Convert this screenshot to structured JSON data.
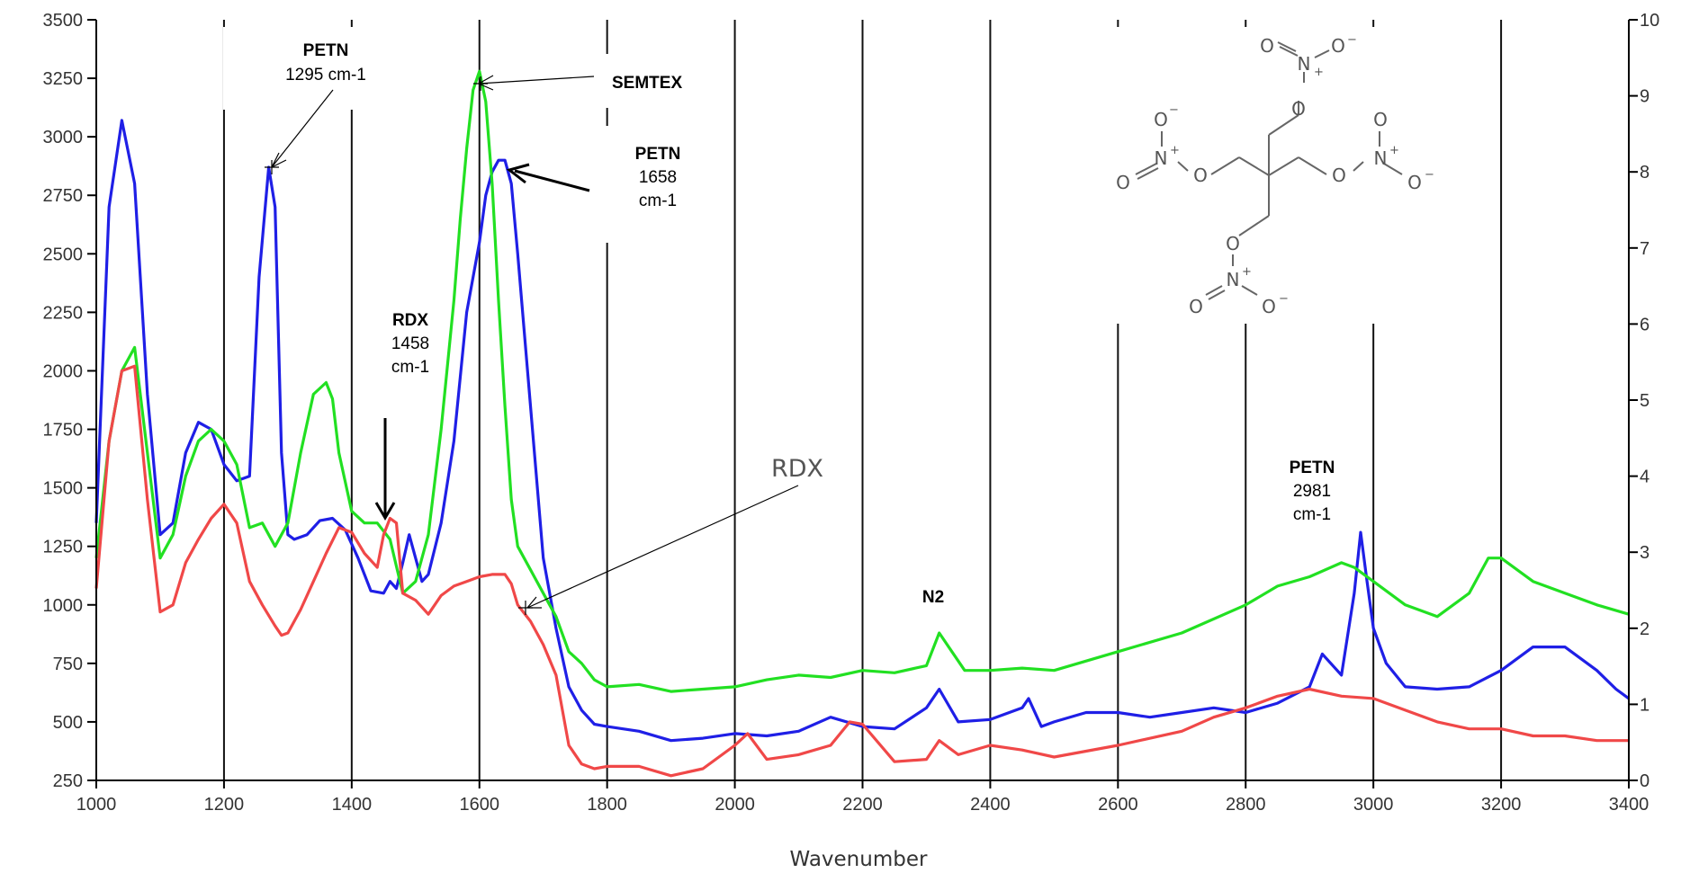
{
  "chart_data": {
    "type": "line",
    "xlabel": "Wavenumber",
    "xlim": [
      1000,
      3400
    ],
    "ylim": [
      250,
      3500
    ],
    "y2lim": [
      0,
      10
    ],
    "x_ticks": [
      1000,
      1200,
      1400,
      1600,
      1800,
      2000,
      2200,
      2400,
      2600,
      2800,
      3000,
      3200,
      3400
    ],
    "y_ticks": [
      250,
      500,
      750,
      1000,
      1250,
      1500,
      1750,
      2000,
      2250,
      2500,
      2750,
      3000,
      3250,
      3500
    ],
    "y2_ticks": [
      0,
      1,
      2,
      3,
      4,
      5,
      6,
      7,
      8,
      9,
      10
    ],
    "grid_vertical_x": [
      1200,
      1400,
      1600,
      1800,
      2000,
      2200,
      2400,
      2600,
      2800,
      3000,
      3200
    ],
    "colors": {
      "blue": "#1f1fe6",
      "green": "#22e022",
      "red": "#f04848"
    },
    "series": [
      {
        "color": "blue",
        "x": [
          1000,
          1020,
          1040,
          1060,
          1080,
          1100,
          1120,
          1140,
          1160,
          1180,
          1200,
          1220,
          1240,
          1255,
          1270,
          1280,
          1290,
          1300,
          1310,
          1330,
          1350,
          1370,
          1390,
          1410,
          1430,
          1450,
          1460,
          1470,
          1480,
          1490,
          1500,
          1510,
          1520,
          1540,
          1560,
          1580,
          1600,
          1610,
          1620,
          1630,
          1640,
          1650,
          1660,
          1680,
          1700,
          1720,
          1740,
          1760,
          1780,
          1800,
          1850,
          1900,
          1950,
          2000,
          2050,
          2100,
          2150,
          2200,
          2250,
          2300,
          2320,
          2350,
          2400,
          2450,
          2460,
          2480,
          2500,
          2550,
          2600,
          2650,
          2700,
          2750,
          2800,
          2850,
          2900,
          2920,
          2950,
          2970,
          2980,
          2990,
          3000,
          3020,
          3050,
          3100,
          3150,
          3200,
          3250,
          3300,
          3350,
          3380,
          3400
        ],
        "y": [
          1350,
          2700,
          3070,
          2800,
          1900,
          1300,
          1350,
          1650,
          1780,
          1750,
          1600,
          1530,
          1550,
          2400,
          2870,
          2700,
          1650,
          1300,
          1280,
          1300,
          1360,
          1370,
          1320,
          1200,
          1060,
          1050,
          1100,
          1070,
          1180,
          1300,
          1200,
          1100,
          1130,
          1350,
          1700,
          2250,
          2550,
          2750,
          2850,
          2900,
          2900,
          2800,
          2500,
          1850,
          1200,
          900,
          650,
          550,
          490,
          480,
          460,
          420,
          430,
          450,
          440,
          460,
          520,
          480,
          470,
          560,
          640,
          500,
          510,
          560,
          600,
          480,
          500,
          540,
          540,
          520,
          540,
          560,
          540,
          580,
          650,
          790,
          700,
          1050,
          1310,
          1100,
          900,
          750,
          650,
          640,
          650,
          720,
          820,
          820,
          720,
          640,
          600
        ]
      },
      {
        "color": "green",
        "x": [
          1000,
          1020,
          1040,
          1060,
          1080,
          1100,
          1120,
          1140,
          1160,
          1180,
          1200,
          1220,
          1240,
          1260,
          1280,
          1300,
          1320,
          1340,
          1360,
          1370,
          1380,
          1400,
          1420,
          1440,
          1460,
          1480,
          1500,
          1520,
          1540,
          1560,
          1570,
          1580,
          1590,
          1600,
          1610,
          1620,
          1630,
          1640,
          1650,
          1660,
          1680,
          1700,
          1720,
          1740,
          1760,
          1780,
          1800,
          1850,
          1900,
          1950,
          2000,
          2050,
          2100,
          2150,
          2200,
          2250,
          2300,
          2320,
          2340,
          2360,
          2400,
          2450,
          2500,
          2600,
          2700,
          2800,
          2850,
          2900,
          2950,
          2970,
          3000,
          3050,
          3100,
          3150,
          3180,
          3200,
          3250,
          3300,
          3350,
          3400
        ],
        "y": [
          1200,
          1700,
          2000,
          2100,
          1650,
          1200,
          1300,
          1550,
          1700,
          1750,
          1700,
          1600,
          1330,
          1350,
          1250,
          1350,
          1650,
          1900,
          1950,
          1880,
          1650,
          1400,
          1350,
          1350,
          1280,
          1050,
          1100,
          1300,
          1750,
          2300,
          2650,
          2950,
          3200,
          3280,
          3150,
          2800,
          2300,
          1850,
          1450,
          1250,
          1150,
          1050,
          950,
          800,
          750,
          680,
          650,
          660,
          630,
          640,
          650,
          680,
          700,
          690,
          720,
          710,
          740,
          880,
          800,
          720,
          720,
          730,
          720,
          800,
          880,
          1000,
          1080,
          1120,
          1180,
          1160,
          1100,
          1000,
          950,
          1050,
          1200,
          1200,
          1100,
          1050,
          1000,
          960
        ]
      },
      {
        "color": "red",
        "x": [
          1000,
          1020,
          1040,
          1060,
          1080,
          1100,
          1120,
          1140,
          1160,
          1180,
          1200,
          1220,
          1240,
          1260,
          1280,
          1290,
          1300,
          1320,
          1340,
          1360,
          1380,
          1400,
          1420,
          1440,
          1450,
          1460,
          1470,
          1480,
          1500,
          1520,
          1540,
          1560,
          1580,
          1600,
          1620,
          1640,
          1650,
          1660,
          1680,
          1700,
          1720,
          1740,
          1760,
          1780,
          1800,
          1850,
          1900,
          1950,
          2000,
          2020,
          2050,
          2100,
          2150,
          2180,
          2200,
          2250,
          2300,
          2320,
          2350,
          2400,
          2450,
          2500,
          2600,
          2700,
          2750,
          2800,
          2850,
          2900,
          2950,
          3000,
          3050,
          3100,
          3150,
          3200,
          3250,
          3300,
          3350,
          3400
        ],
        "y": [
          1070,
          1700,
          2000,
          2020,
          1450,
          970,
          1000,
          1180,
          1280,
          1370,
          1430,
          1350,
          1100,
          1000,
          910,
          870,
          880,
          980,
          1100,
          1220,
          1330,
          1310,
          1220,
          1160,
          1300,
          1370,
          1350,
          1050,
          1020,
          960,
          1040,
          1080,
          1100,
          1120,
          1130,
          1130,
          1090,
          1000,
          930,
          830,
          700,
          400,
          320,
          300,
          310,
          310,
          270,
          300,
          400,
          450,
          340,
          360,
          400,
          500,
          490,
          330,
          340,
          420,
          360,
          400,
          380,
          350,
          400,
          460,
          520,
          560,
          610,
          640,
          610,
          600,
          550,
          500,
          470,
          470,
          440,
          440,
          420,
          420
        ]
      }
    ]
  },
  "annotations": {
    "petn_1295_title": "PETN",
    "petn_1295_value": "1295 cm-1",
    "semtex": "SEMTEX",
    "petn_1658_title": "PETN",
    "petn_1658_value": "1658",
    "petn_1658_unit": "cm-1",
    "rdx_1458_title": "RDX",
    "rdx_1458_value": "1458",
    "rdx_1458_unit": "cm-1",
    "rdx_label": "RDX",
    "n2": "N2",
    "petn_2981_title": "PETN",
    "petn_2981_value": "2981",
    "petn_2981_unit": "cm-1"
  },
  "molecule": {
    "atom_O": "O",
    "atom_N": "N",
    "charge_plus": "+",
    "charge_minus": "−"
  }
}
